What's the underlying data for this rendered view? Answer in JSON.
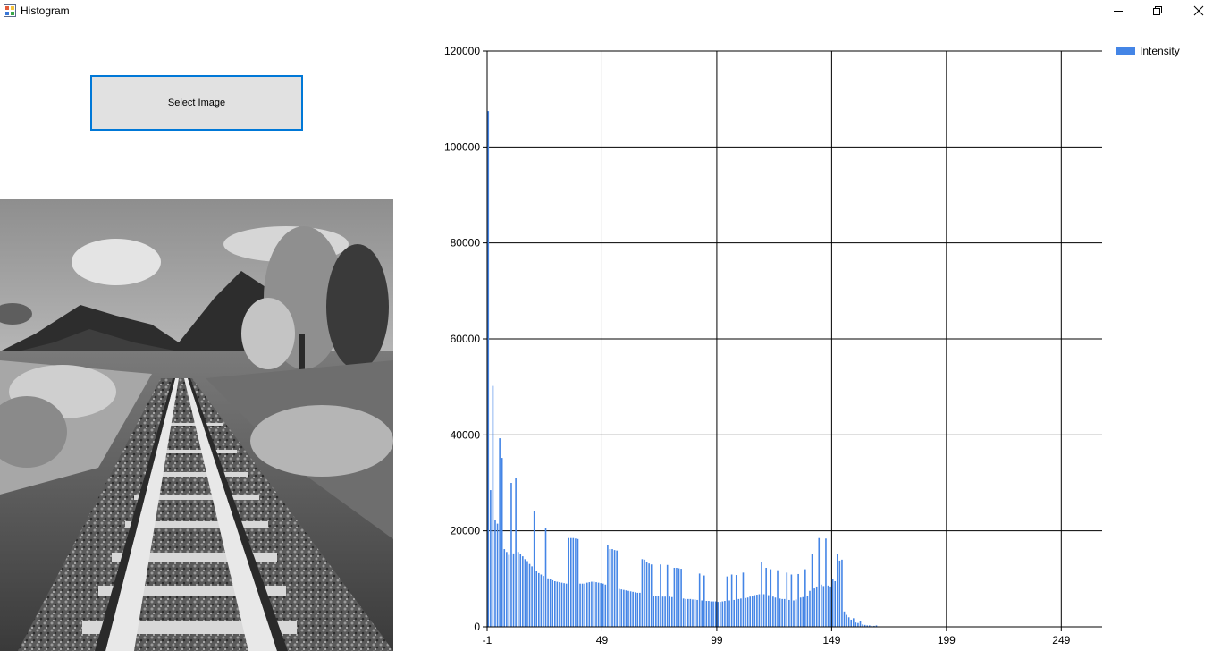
{
  "window": {
    "title": "Histogram",
    "controls": [
      "minimize-icon",
      "restore-icon",
      "close-icon"
    ]
  },
  "select_button": {
    "label": "Select Image"
  },
  "photo": {
    "description_icon": "railway-photo"
  },
  "colors": {
    "bar": "#4485e6",
    "grid": "#000000",
    "button_border": "#0078d7",
    "button_bg": "#e1e1e1"
  },
  "chart_data": {
    "type": "bar",
    "legend": {
      "position": "top-right",
      "entries": [
        "Intensity"
      ]
    },
    "series": [
      {
        "name": "Intensity",
        "x_start": -1,
        "values": [
          107500,
          28500,
          50200,
          22300,
          21500,
          39300,
          35200,
          16200,
          15600,
          15000,
          30000,
          15300,
          31000,
          15600,
          15200,
          14700,
          14100,
          13700,
          13100,
          12600,
          24200,
          11600,
          11200,
          10900,
          10600,
          20500,
          10100,
          9900,
          9700,
          9500,
          9400,
          9300,
          9200,
          9100,
          9000,
          18500,
          18500,
          18500,
          18400,
          18300,
          9000,
          9000,
          9000,
          9200,
          9300,
          9400,
          9400,
          9300,
          9200,
          9100,
          9000,
          8800,
          17000,
          16200,
          16200,
          16000,
          15900,
          7900,
          7800,
          7700,
          7600,
          7500,
          7400,
          7300,
          7200,
          7100,
          7100,
          14100,
          14000,
          13500,
          13200,
          13000,
          6500,
          6500,
          6500,
          13000,
          6300,
          6300,
          12900,
          6300,
          6200,
          12300,
          12300,
          12200,
          12100,
          5900,
          5800,
          5800,
          5800,
          5700,
          5700,
          5600,
          11100,
          5500,
          10700,
          5400,
          5400,
          5300,
          5300,
          5300,
          5200,
          5200,
          5300,
          5400,
          10500,
          5500,
          10900,
          5600,
          10800,
          5800,
          5900,
          11300,
          6000,
          6100,
          6300,
          6500,
          6600,
          6700,
          6800,
          13600,
          6800,
          12300,
          6600,
          12000,
          6300,
          6100,
          11800,
          5900,
          5800,
          5800,
          11300,
          5600,
          10900,
          5500,
          5700,
          11000,
          6100,
          6200,
          12000,
          6500,
          7500,
          15100,
          8000,
          8400,
          18500,
          8800,
          8500,
          18400,
          8600,
          8400,
          10000,
          9500,
          15100,
          13800,
          14000,
          3200,
          2500,
          2000,
          1500,
          1800,
          900,
          800,
          1300,
          500,
          400,
          300,
          300,
          200,
          200,
          300
        ]
      }
    ],
    "xlim": [
      -1,
      259
    ],
    "x_ticks": [
      "-1",
      "49",
      "99",
      "149",
      "199",
      "249"
    ],
    "ylim": [
      0,
      120000
    ],
    "y_ticks": [
      "0",
      "20000",
      "40000",
      "60000",
      "80000",
      "100000",
      "120000"
    ],
    "grid": true
  }
}
